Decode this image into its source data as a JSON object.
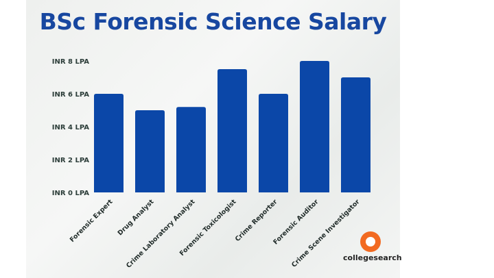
{
  "chart_data": {
    "type": "bar",
    "title": "BSc Forensic Science Salary",
    "categories": [
      "Forensic Expert",
      "Drug Analyst",
      "Crime Laboratory Analyst",
      "Forensic Toxicologist",
      "Crime Reporter",
      "Forensic Auditor",
      "Crime Scene Investigator"
    ],
    "values": [
      6,
      5,
      5.2,
      7.5,
      6,
      8,
      7
    ],
    "unit": "INR LPA",
    "yticks": [
      "INR 0 LPA",
      "INR 2 LPA",
      "INR 4 LPA",
      "INR 6 LPA",
      "INR 8 LPA"
    ],
    "ylim": [
      0,
      8
    ],
    "grid": false,
    "bar_color": "#0b47a8"
  },
  "logo": {
    "text": "collegesearch",
    "color": "#f26a21"
  }
}
